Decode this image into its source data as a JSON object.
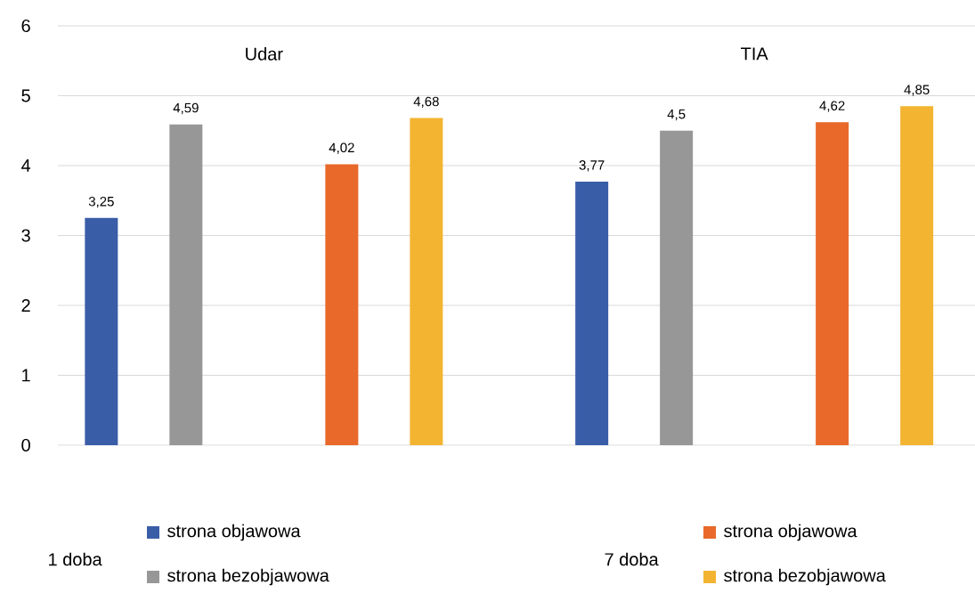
{
  "chart_data": {
    "type": "bar",
    "categories": [
      "Udar",
      "TIA"
    ],
    "series": [
      {
        "name": "strona objawowa",
        "color": "#3a5da8",
        "values": [
          3.25,
          3.77
        ],
        "value_labels": [
          "3,25",
          "3,77"
        ]
      },
      {
        "name": "strona bezobjawowa",
        "color": "#979797",
        "values": [
          4.59,
          4.5
        ],
        "value_labels": [
          "4,59",
          "4,5"
        ]
      },
      {
        "name": "strona objawowa",
        "color": "#e8692a",
        "values": [
          4.02,
          4.62
        ],
        "value_labels": [
          "4,02",
          "4,62"
        ]
      },
      {
        "name": "strona bezobjawowa",
        "color": "#f3b431",
        "values": [
          4.68,
          4.85
        ],
        "value_labels": [
          "4,68",
          "4,85"
        ]
      }
    ],
    "annotations": [
      "1 doba",
      "7 doba"
    ],
    "ylim": [
      0,
      6
    ],
    "yticks": [
      0,
      1,
      2,
      3,
      4,
      5,
      6
    ],
    "grid": "y",
    "legend": "bottom"
  }
}
